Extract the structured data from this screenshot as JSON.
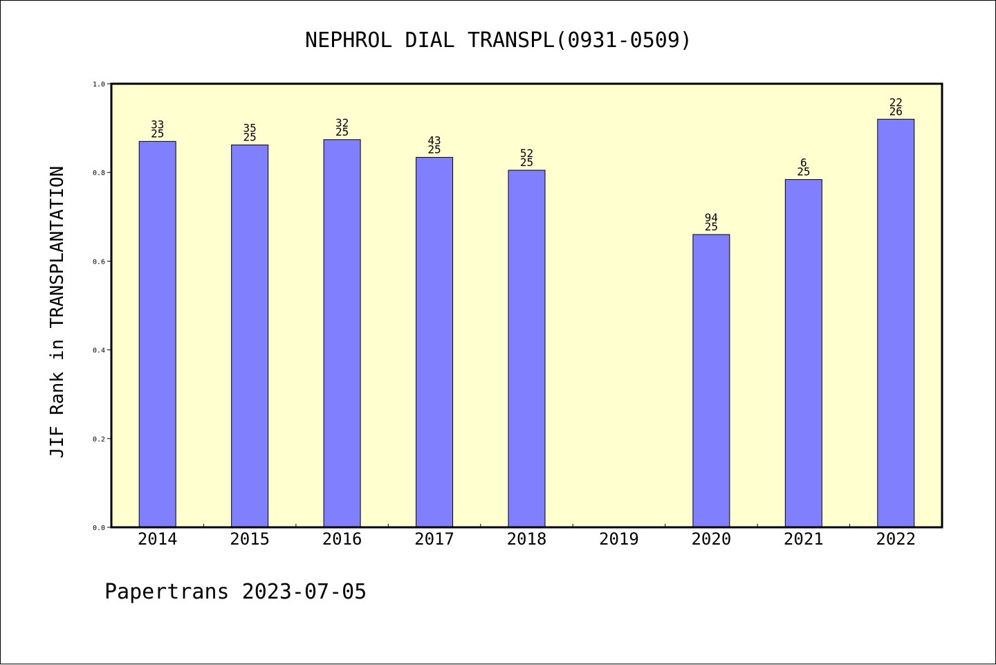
{
  "footer": "Papertrans 2023-07-05",
  "colors": {
    "plot_background": "#FFFFD0",
    "bar_fill": "#8080FF",
    "bar_stroke": "#000000"
  },
  "chart_data": {
    "type": "bar",
    "title": "NEPHROL DIAL TRANSPL(0931-0509)",
    "xlabel": "",
    "ylabel": "JIF Rank in TRANSPLANTATION",
    "ylim": [
      0.0,
      1.0
    ],
    "yticks": [
      "0.0",
      "0.2",
      "0.4",
      "0.6",
      "0.8",
      "1.0"
    ],
    "grid": false,
    "categories": [
      "2014",
      "2015",
      "2016",
      "2017",
      "2018",
      "2019",
      "2020",
      "2021",
      "2022"
    ],
    "values": [
      0.87,
      0.862,
      0.874,
      0.834,
      0.805,
      null,
      0.66,
      0.784,
      0.92
    ],
    "labels": [
      {
        "rank": "33",
        "total": "25"
      },
      {
        "rank": "35",
        "total": "25"
      },
      {
        "rank": "32",
        "total": "25"
      },
      {
        "rank": "43",
        "total": "25"
      },
      {
        "rank": "52",
        "total": "25"
      },
      null,
      {
        "rank": "94",
        "total": "25"
      },
      {
        "rank": "6",
        "total": "25"
      },
      {
        "rank": "22",
        "total": "26"
      }
    ]
  }
}
